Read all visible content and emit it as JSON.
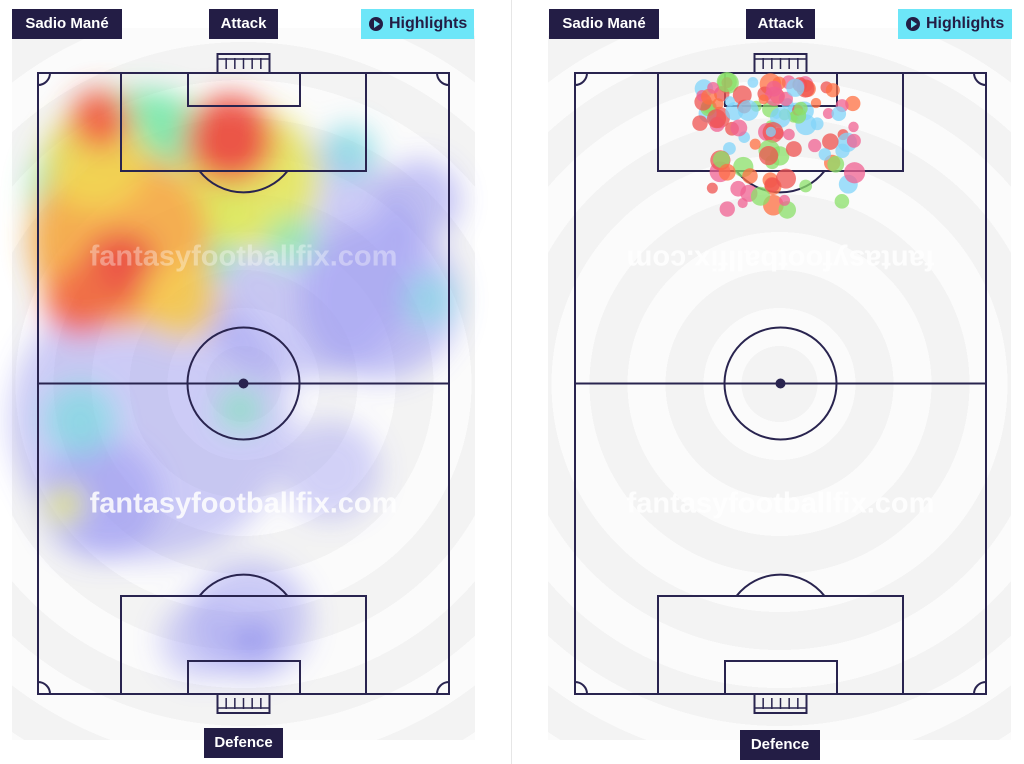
{
  "panels": [
    {
      "player": "Sadio Mané",
      "top_label": "Attack",
      "button": "Highlights",
      "bottom_label": "Defence",
      "watermarks": [
        "fantasyfootballfix.com",
        "fantasyfootballfix.com"
      ]
    },
    {
      "player": "Sadio Mané",
      "top_label": "Attack",
      "button": "Highlights",
      "bottom_label": "Defence",
      "watermarks": [
        "fantasyfootballfix.com",
        "fantasyfootballfix.com"
      ]
    }
  ]
}
